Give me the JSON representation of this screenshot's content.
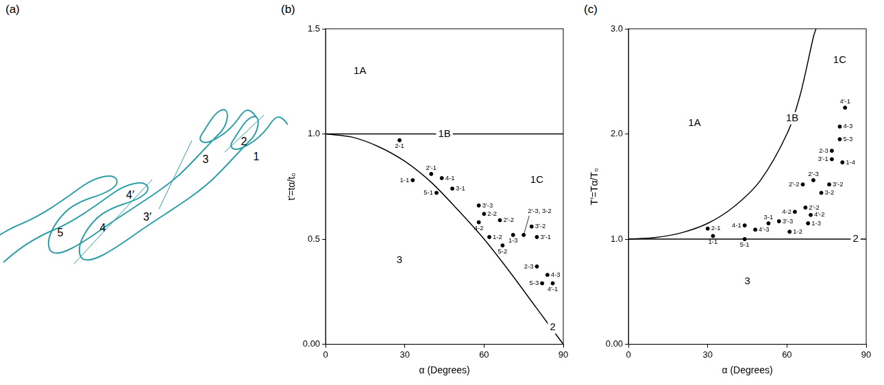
{
  "diagram": {
    "panel": "(a)",
    "color": "#2b9ea6",
    "labels": [
      "5",
      "4",
      "4′",
      "3′",
      "3",
      "2",
      "1"
    ]
  },
  "chart_data": [
    {
      "type": "scatter",
      "panel": "(b)",
      "x_label": "α (Degrees)",
      "y_label": "t′=tα/t₀",
      "xlim": [
        0,
        90
      ],
      "xticks": [
        0,
        30,
        60,
        90
      ],
      "ylim": [
        0,
        1.5
      ],
      "yticks": [
        {
          "value": 0,
          "label": "0.00"
        },
        {
          "value": 0.5,
          "label": "0.5"
        },
        {
          "value": 1,
          "label": "1.0"
        },
        {
          "value": 1.5,
          "label": "1.5"
        }
      ],
      "grid": false,
      "series": [
        {
          "type": "line",
          "color": "#000000",
          "x": [
            0,
            10,
            20,
            30,
            40,
            50,
            60,
            70,
            80,
            90
          ],
          "values": [
            1.0,
            0.985,
            0.94,
            0.87,
            0.77,
            0.64,
            0.5,
            0.34,
            0.17,
            0.0
          ]
        },
        {
          "type": "line",
          "color": "#000000",
          "x": [
            0,
            90
          ],
          "values": [
            1.0,
            1.0
          ]
        },
        {
          "type": "scatter",
          "color": "#000000",
          "marker": "circle",
          "x": [
            28,
            33,
            40,
            44,
            42,
            48,
            58,
            60,
            58,
            66,
            62,
            67,
            71,
            75,
            78,
            80,
            80,
            84,
            82,
            86
          ],
          "values": [
            0.97,
            0.78,
            0.81,
            0.79,
            0.72,
            0.74,
            0.66,
            0.62,
            0.58,
            0.59,
            0.51,
            0.47,
            0.52,
            0.52,
            0.56,
            0.51,
            0.37,
            0.33,
            0.29,
            0.29
          ],
          "point_labels": [
            "2-1",
            "1-1",
            "2′-1",
            "4-1",
            "5-1",
            "3-1",
            "3′-3",
            "2-2",
            "4-2",
            "2′-2",
            "1-2",
            "5-2",
            "1-3",
            "2′-3, 3-2",
            "3′-2",
            "3′-1",
            "2-3",
            "4-3",
            "5-3",
            "4′-1"
          ]
        }
      ],
      "annotations": [
        {
          "text": "1A",
          "x": 13,
          "y": 1.3
        },
        {
          "text": "1B",
          "x": 45,
          "y": 1.0
        },
        {
          "text": "1C",
          "x": 80,
          "y": 0.78
        },
        {
          "text": "3",
          "x": 28,
          "y": 0.4
        },
        {
          "text": "2",
          "x": 86,
          "y": 0.08
        }
      ]
    },
    {
      "type": "scatter",
      "panel": "(c)",
      "x_label": "α (Degrees)",
      "y_label": "T′=Tα/T₀",
      "xlim": [
        0,
        90
      ],
      "xticks": [
        0,
        30,
        60,
        90
      ],
      "ylim": [
        0,
        3
      ],
      "yticks": [
        {
          "value": 0,
          "label": "0.00"
        },
        {
          "value": 1,
          "label": "1.0"
        },
        {
          "value": 2,
          "label": "2.0"
        },
        {
          "value": 3,
          "label": "3.0"
        }
      ],
      "grid": false,
      "series": [
        {
          "type": "line",
          "color": "#000000",
          "x": [
            0,
            10,
            20,
            30,
            40,
            50,
            60,
            65,
            70,
            71
          ],
          "values": [
            1.0,
            1.015,
            1.06,
            1.15,
            1.31,
            1.56,
            2.0,
            2.37,
            2.92,
            3.0
          ]
        },
        {
          "type": "line",
          "color": "#000000",
          "x": [
            0,
            90
          ],
          "values": [
            1.0,
            1.0
          ]
        },
        {
          "type": "scatter",
          "color": "#000000",
          "marker": "circle",
          "x": [
            32,
            30,
            44,
            44,
            48,
            53,
            57,
            61,
            68,
            63,
            67,
            69,
            73,
            76,
            66,
            70,
            77,
            77,
            81,
            80,
            80,
            82
          ],
          "values": [
            1.03,
            1.1,
            1.0,
            1.13,
            1.09,
            1.15,
            1.17,
            1.07,
            1.15,
            1.26,
            1.3,
            1.23,
            1.44,
            1.52,
            1.52,
            1.56,
            1.76,
            1.84,
            1.73,
            1.95,
            2.07,
            2.25
          ],
          "point_labels": [
            "1-1",
            "2-1",
            "5-1",
            "4-1",
            "4′-3",
            "3-1",
            "3′-3",
            "1-2",
            "1-3",
            "4-2",
            "2′-2",
            "4′-2",
            "3-2",
            "3′-2",
            "2′-2",
            "2′-3",
            "3′-1",
            "2-3",
            "1-4",
            "5-3",
            "4-3",
            "4′-1"
          ]
        }
      ],
      "annotations": [
        {
          "text": "1A",
          "x": 25,
          "y": 2.1
        },
        {
          "text": "1B",
          "x": 62,
          "y": 2.15
        },
        {
          "text": "1C",
          "x": 80,
          "y": 2.7
        },
        {
          "text": "3",
          "x": 45,
          "y": 0.6
        },
        {
          "text": "2",
          "x": 86,
          "y": 1.0
        }
      ]
    }
  ]
}
